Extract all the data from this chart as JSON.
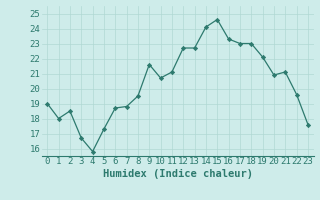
{
  "x": [
    0,
    1,
    2,
    3,
    4,
    5,
    6,
    7,
    8,
    9,
    10,
    11,
    12,
    13,
    14,
    15,
    16,
    17,
    18,
    19,
    20,
    21,
    22,
    23
  ],
  "y": [
    19.0,
    18.0,
    18.5,
    16.7,
    15.8,
    17.3,
    18.7,
    18.8,
    19.5,
    21.6,
    20.7,
    21.1,
    22.7,
    22.7,
    24.1,
    24.6,
    23.3,
    23.0,
    23.0,
    22.1,
    20.9,
    21.1,
    19.6,
    17.6
  ],
  "xlabel": "Humidex (Indice chaleur)",
  "ylim": [
    15.5,
    25.5
  ],
  "xlim": [
    -0.5,
    23.5
  ],
  "yticks": [
    16,
    17,
    18,
    19,
    20,
    21,
    22,
    23,
    24,
    25
  ],
  "xticks": [
    0,
    1,
    2,
    3,
    4,
    5,
    6,
    7,
    8,
    9,
    10,
    11,
    12,
    13,
    14,
    15,
    16,
    17,
    18,
    19,
    20,
    21,
    22,
    23
  ],
  "line_color": "#2d7a6e",
  "marker": "D",
  "marker_size": 2.2,
  "bg_color": "#ceecea",
  "grid_color": "#b0d8d4",
  "tick_color": "#2d7a6e",
  "xlabel_fontsize": 7.5,
  "tick_fontsize": 6.5
}
